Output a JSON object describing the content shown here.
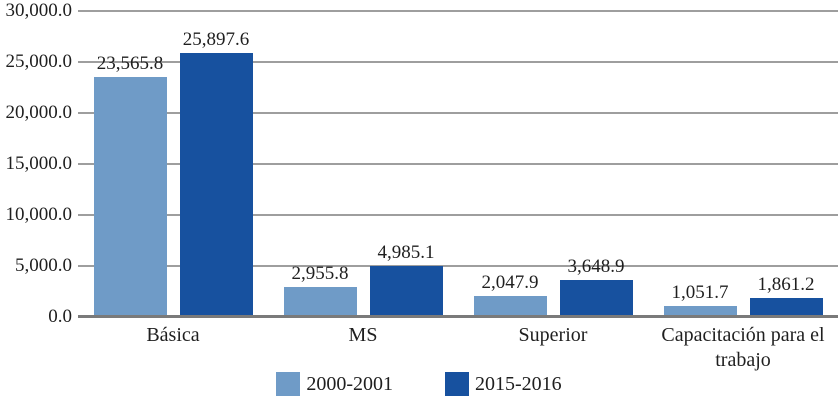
{
  "chart_data": {
    "type": "bar",
    "title": "",
    "xlabel": "",
    "ylabel": "",
    "categories": [
      "Básica",
      "MS",
      "Superior",
      "Capacitación para el trabajo"
    ],
    "series": [
      {
        "name": "2000-2001",
        "color": "#6F9BC7",
        "values": [
          23565.8,
          2955.8,
          2047.9,
          1051.7
        ],
        "labels": [
          "23,565.8",
          "2,955.8",
          "2,047.9",
          "1,051.7"
        ]
      },
      {
        "name": "2015-2016",
        "color": "#17519F",
        "values": [
          25897.6,
          4985.1,
          3648.9,
          1861.2
        ],
        "labels": [
          "25,897.6",
          "4,985.1",
          "3,648.9",
          "1,861.2"
        ]
      }
    ],
    "y_ticks": [
      "30,000.0",
      "25,000.0",
      "20,000.0",
      "15,000.0",
      "10,000.0",
      "5,000.0",
      "0.0"
    ],
    "ylim": [
      0,
      30000
    ],
    "grid": true,
    "legend_position": "bottom",
    "colors": {
      "gridline": "#9E9E9E",
      "axis_line": "#7A7A7A",
      "text": "#1F1F1F",
      "background": "#FFFFFF"
    }
  }
}
